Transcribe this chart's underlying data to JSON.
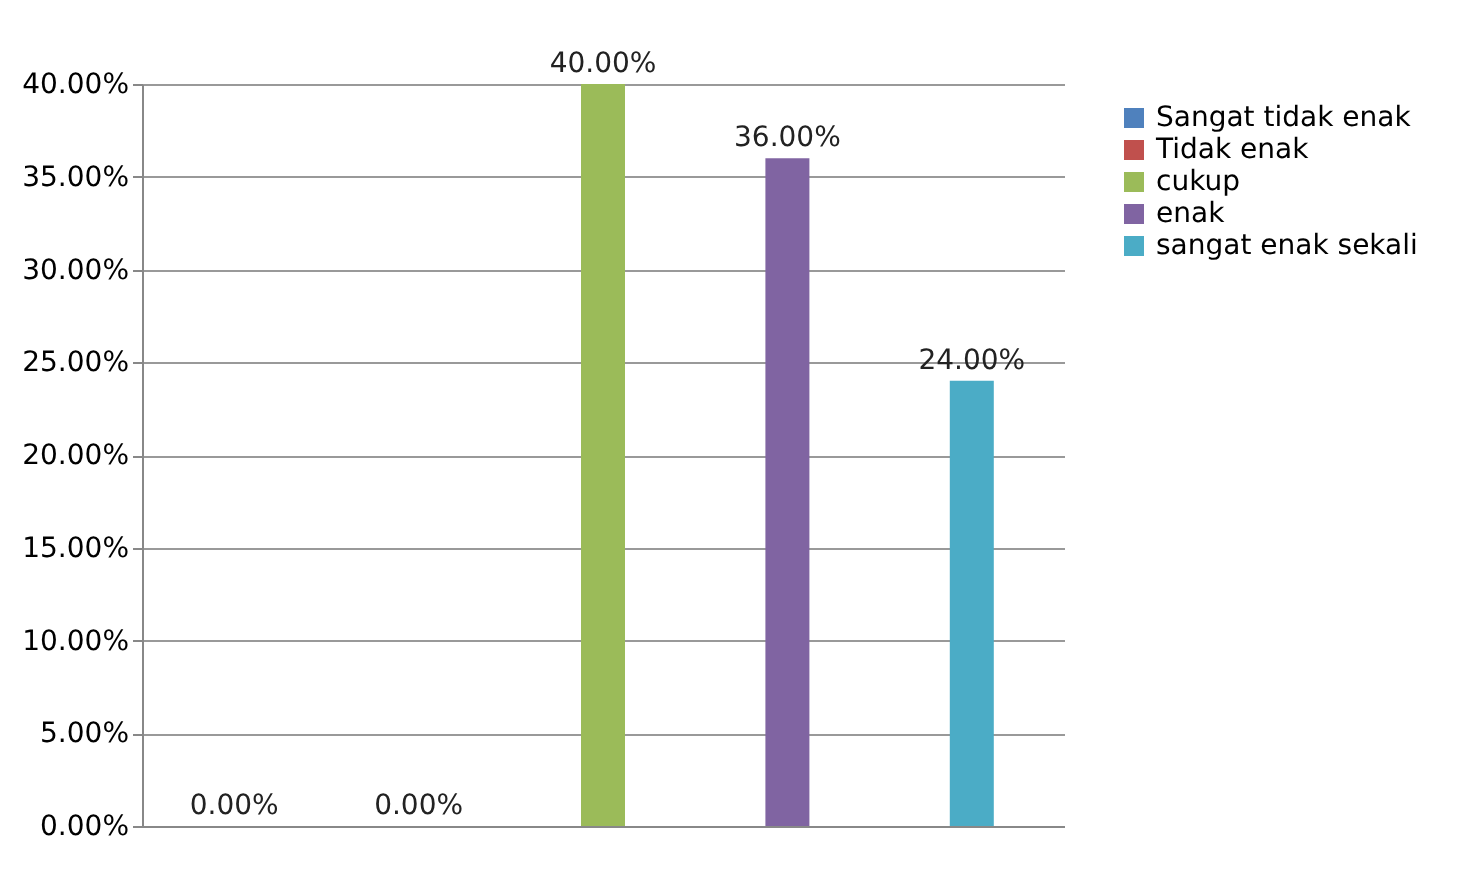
{
  "chart_data": {
    "type": "bar",
    "categories": [
      null,
      null,
      null,
      null,
      null
    ],
    "series": [
      {
        "name": "Sangat tidak enak",
        "color": "#4f81bd",
        "values": [
          0,
          null,
          null,
          null,
          null
        ],
        "value_labels": [
          "0.00%",
          null,
          null,
          null,
          null
        ]
      },
      {
        "name": "Tidak enak",
        "color": "#c0504d",
        "values": [
          null,
          0,
          null,
          null,
          null
        ],
        "value_labels": [
          null,
          "0.00%",
          null,
          null,
          null
        ]
      },
      {
        "name": "cukup",
        "color": "#9bbb59",
        "values": [
          null,
          null,
          40,
          null,
          null
        ],
        "value_labels": [
          null,
          null,
          "40.00%",
          null,
          null
        ]
      },
      {
        "name": "enak",
        "color": "#8064a2",
        "values": [
          null,
          null,
          null,
          36,
          null
        ],
        "value_labels": [
          null,
          null,
          null,
          "36.00%",
          null
        ]
      },
      {
        "name": "sangat enak sekali",
        "color": "#4bacc6",
        "values": [
          null,
          null,
          null,
          null,
          24
        ],
        "value_labels": [
          null,
          null,
          null,
          null,
          "24.00%"
        ]
      }
    ],
    "ylim": [
      0,
      40
    ],
    "yticks": [
      {
        "value": 0,
        "label": "0.00%"
      },
      {
        "value": 5,
        "label": "5.00%"
      },
      {
        "value": 10,
        "label": "10.00%"
      },
      {
        "value": 15,
        "label": "15.00%"
      },
      {
        "value": 20,
        "label": "20.00%"
      },
      {
        "value": 25,
        "label": "25.00%"
      },
      {
        "value": 30,
        "label": "30.00%"
      },
      {
        "value": 35,
        "label": "35.00%"
      },
      {
        "value": 40,
        "label": "40.00%"
      }
    ],
    "grid": "y",
    "legend": "right"
  }
}
